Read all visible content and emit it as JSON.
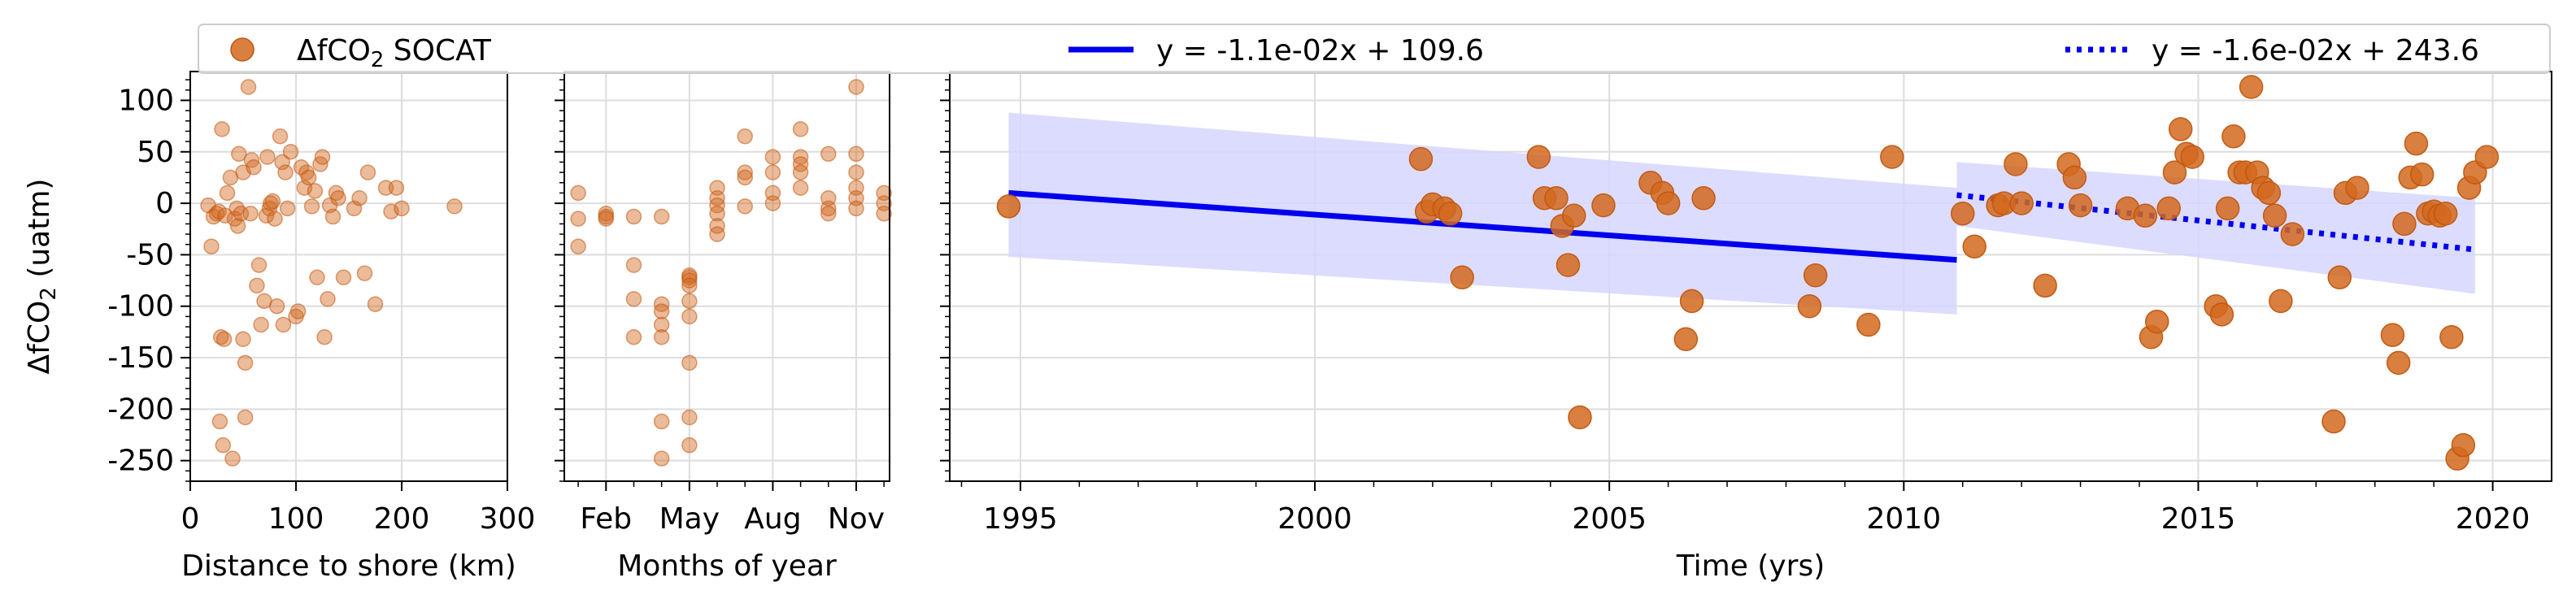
{
  "chart_data": [
    {
      "panel": "distance",
      "type": "scatter",
      "xlabel": "Distance to shore (km)",
      "ylabel": "ΔfCO₂ (uatm)",
      "xlim": [
        0,
        300
      ],
      "ylim": [
        -270,
        128
      ],
      "xticks": [
        0,
        100,
        200,
        300
      ],
      "yticks": [
        100,
        50,
        0,
        -50,
        -100,
        -150,
        -200,
        -250
      ],
      "grid": true,
      "series": [
        {
          "name": "ΔfCO₂ SOCAT",
          "color": "#d2691e",
          "points": [
            [
              17,
              -2
            ],
            [
              20,
              -42
            ],
            [
              22,
              -13
            ],
            [
              25,
              -10
            ],
            [
              27,
              -8
            ],
            [
              28,
              -212
            ],
            [
              29,
              -130
            ],
            [
              30,
              72
            ],
            [
              31,
              -235
            ],
            [
              32,
              -132
            ],
            [
              33,
              -12
            ],
            [
              35,
              10
            ],
            [
              38,
              25
            ],
            [
              40,
              -248
            ],
            [
              42,
              -15
            ],
            [
              44,
              -5
            ],
            [
              45,
              -22
            ],
            [
              46,
              48
            ],
            [
              48,
              -10
            ],
            [
              50,
              -132
            ],
            [
              50,
              30
            ],
            [
              52,
              -155
            ],
            [
              52,
              -208
            ],
            [
              55,
              113
            ],
            [
              57,
              -10
            ],
            [
              58,
              42
            ],
            [
              60,
              35
            ],
            [
              63,
              -80
            ],
            [
              65,
              -60
            ],
            [
              67,
              -118
            ],
            [
              70,
              -95
            ],
            [
              72,
              -12
            ],
            [
              73,
              45
            ],
            [
              75,
              -5
            ],
            [
              76,
              0
            ],
            [
              78,
              2
            ],
            [
              80,
              -15
            ],
            [
              82,
              -100
            ],
            [
              85,
              65
            ],
            [
              87,
              40
            ],
            [
              88,
              -118
            ],
            [
              90,
              30
            ],
            [
              92,
              -5
            ],
            [
              95,
              50
            ],
            [
              100,
              -110
            ],
            [
              102,
              -105
            ],
            [
              105,
              35
            ],
            [
              108,
              15
            ],
            [
              110,
              30
            ],
            [
              112,
              25
            ],
            [
              115,
              -3
            ],
            [
              118,
              12
            ],
            [
              120,
              -72
            ],
            [
              123,
              38
            ],
            [
              125,
              45
            ],
            [
              127,
              -130
            ],
            [
              130,
              -93
            ],
            [
              132,
              -2
            ],
            [
              135,
              -13
            ],
            [
              138,
              10
            ],
            [
              140,
              5
            ],
            [
              145,
              -72
            ],
            [
              155,
              -5
            ],
            [
              160,
              5
            ],
            [
              165,
              -68
            ],
            [
              168,
              30
            ],
            [
              175,
              -98
            ],
            [
              185,
              15
            ],
            [
              190,
              -8
            ],
            [
              195,
              15
            ],
            [
              200,
              -5
            ],
            [
              250,
              -3
            ]
          ]
        }
      ]
    },
    {
      "panel": "months",
      "type": "scatter",
      "xlabel": "Months of year",
      "xlim": [
        0.5,
        12.2
      ],
      "ylim": [
        -270,
        128
      ],
      "xticks_major": [
        2,
        5,
        8,
        11
      ],
      "xticklabels": [
        "Feb",
        "May",
        "Aug",
        "Nov"
      ],
      "xticks_minor": [
        1,
        2,
        3,
        4,
        5,
        6,
        7,
        8,
        9,
        10,
        11,
        12
      ],
      "grid": true,
      "series": [
        {
          "name": "ΔfCO₂ SOCAT",
          "color": "#d2691e",
          "points": [
            [
              1,
              10
            ],
            [
              1,
              -15
            ],
            [
              1,
              -42
            ],
            [
              2,
              -10
            ],
            [
              2,
              -13
            ],
            [
              2,
              -15
            ],
            [
              3,
              -13
            ],
            [
              3,
              -60
            ],
            [
              3,
              -93
            ],
            [
              3,
              -130
            ],
            [
              4,
              -13
            ],
            [
              4,
              -98
            ],
            [
              4,
              -105
            ],
            [
              4,
              -118
            ],
            [
              4,
              -130
            ],
            [
              4,
              -212
            ],
            [
              4,
              -248
            ],
            [
              5,
              -70
            ],
            [
              5,
              -72
            ],
            [
              5,
              -75
            ],
            [
              5,
              -80
            ],
            [
              5,
              -95
            ],
            [
              5,
              -110
            ],
            [
              5,
              -155
            ],
            [
              5,
              -208
            ],
            [
              5,
              -235
            ],
            [
              6,
              15
            ],
            [
              6,
              5
            ],
            [
              6,
              -2
            ],
            [
              6,
              -10
            ],
            [
              6,
              -22
            ],
            [
              6,
              -30
            ],
            [
              7,
              65
            ],
            [
              7,
              30
            ],
            [
              7,
              25
            ],
            [
              7,
              -3
            ],
            [
              8,
              45
            ],
            [
              8,
              30
            ],
            [
              8,
              10
            ],
            [
              8,
              0
            ],
            [
              9,
              72
            ],
            [
              9,
              45
            ],
            [
              9,
              38
            ],
            [
              9,
              30
            ],
            [
              9,
              15
            ],
            [
              10,
              48
            ],
            [
              10,
              5
            ],
            [
              10,
              -5
            ],
            [
              10,
              -10
            ],
            [
              11,
              113
            ],
            [
              11,
              48
            ],
            [
              11,
              30
            ],
            [
              11,
              15
            ],
            [
              11,
              5
            ],
            [
              11,
              -5
            ],
            [
              12,
              10
            ],
            [
              12,
              0
            ],
            [
              12,
              -10
            ]
          ]
        }
      ]
    },
    {
      "panel": "time",
      "type": "scatter",
      "xlabel": "Time (yrs)",
      "xlim": [
        1993.8,
        2021.0
      ],
      "ylim": [
        -270,
        128
      ],
      "xticks": [
        1995,
        2000,
        2005,
        2010,
        2015,
        2020
      ],
      "grid": true,
      "series": [
        {
          "name": "ΔfCO₂ SOCAT",
          "color": "#d2691e",
          "points": [
            [
              1994.8,
              -3
            ],
            [
              2001.8,
              43
            ],
            [
              2001.9,
              -8
            ],
            [
              2002.0,
              -1
            ],
            [
              2002.2,
              -5
            ],
            [
              2002.3,
              -10
            ],
            [
              2002.5,
              -72
            ],
            [
              2003.8,
              45
            ],
            [
              2003.9,
              5
            ],
            [
              2004.1,
              5
            ],
            [
              2004.2,
              -22
            ],
            [
              2004.3,
              -60
            ],
            [
              2004.4,
              -12
            ],
            [
              2004.5,
              -208
            ],
            [
              2004.9,
              -2
            ],
            [
              2005.7,
              20
            ],
            [
              2005.9,
              10
            ],
            [
              2006.0,
              0
            ],
            [
              2006.3,
              -132
            ],
            [
              2006.4,
              -95
            ],
            [
              2006.6,
              5
            ],
            [
              2008.4,
              -100
            ],
            [
              2008.5,
              -70
            ],
            [
              2009.4,
              -118
            ],
            [
              2009.8,
              45
            ],
            [
              2011.0,
              -10
            ],
            [
              2011.2,
              -42
            ],
            [
              2011.6,
              -2
            ],
            [
              2011.7,
              0
            ],
            [
              2011.9,
              38
            ],
            [
              2012.0,
              0
            ],
            [
              2012.4,
              -80
            ],
            [
              2012.8,
              38
            ],
            [
              2012.9,
              25
            ],
            [
              2013.0,
              -2
            ],
            [
              2013.8,
              -5
            ],
            [
              2014.1,
              -12
            ],
            [
              2014.2,
              -130
            ],
            [
              2014.3,
              -115
            ],
            [
              2014.5,
              -5
            ],
            [
              2014.6,
              30
            ],
            [
              2014.7,
              72
            ],
            [
              2014.8,
              48
            ],
            [
              2014.9,
              45
            ],
            [
              2015.3,
              -100
            ],
            [
              2015.4,
              -108
            ],
            [
              2015.5,
              -5
            ],
            [
              2015.6,
              65
            ],
            [
              2015.7,
              30
            ],
            [
              2015.8,
              30
            ],
            [
              2015.9,
              113
            ],
            [
              2016.0,
              30
            ],
            [
              2016.1,
              15
            ],
            [
              2016.2,
              10
            ],
            [
              2016.3,
              -12
            ],
            [
              2016.4,
              -95
            ],
            [
              2016.6,
              -30
            ],
            [
              2017.3,
              -212
            ],
            [
              2017.4,
              -72
            ],
            [
              2017.5,
              10
            ],
            [
              2017.7,
              15
            ],
            [
              2018.3,
              -128
            ],
            [
              2018.4,
              -155
            ],
            [
              2018.5,
              -20
            ],
            [
              2018.6,
              25
            ],
            [
              2018.7,
              58
            ],
            [
              2018.8,
              28
            ],
            [
              2018.9,
              -10
            ],
            [
              2019.0,
              -8
            ],
            [
              2019.1,
              -12
            ],
            [
              2019.2,
              -10
            ],
            [
              2019.3,
              -130
            ],
            [
              2019.4,
              -248
            ],
            [
              2019.5,
              -235
            ],
            [
              2019.6,
              15
            ],
            [
              2019.7,
              30
            ],
            [
              2019.9,
              45
            ]
          ]
        },
        {
          "name": "y = -1.1e-02x + 109.6",
          "kind": "trend",
          "style": "solid",
          "color": "#0000ee",
          "x": [
            1994.8,
            2010.9
          ],
          "y": [
            10,
            -55
          ],
          "band": {
            "x": [
              1994.8,
              2010.9
            ],
            "upper": [
              88,
              15
            ],
            "lower": [
              -52,
              -108
            ]
          }
        },
        {
          "name": "y = -1.6e-02x + 243.6",
          "kind": "trend",
          "style": "dotted",
          "color": "#0000ee",
          "x": [
            2010.9,
            2019.7
          ],
          "y": [
            8,
            -45
          ],
          "band": {
            "x": [
              2010.9,
              2019.7
            ],
            "upper": [
              40,
              5
            ],
            "lower": [
              -22,
              -88
            ]
          }
        }
      ]
    }
  ],
  "legend": {
    "marker_label": "ΔfCO₂ SOCAT",
    "solid_label": "y = -1.1e-02x + 109.6",
    "dotted_label": "y = -1.6e-02x + 243.6"
  },
  "colors": {
    "points": "#d2691e",
    "trend": "#0000ee",
    "band": "#d6d6ff",
    "grid": "#dddddd"
  }
}
